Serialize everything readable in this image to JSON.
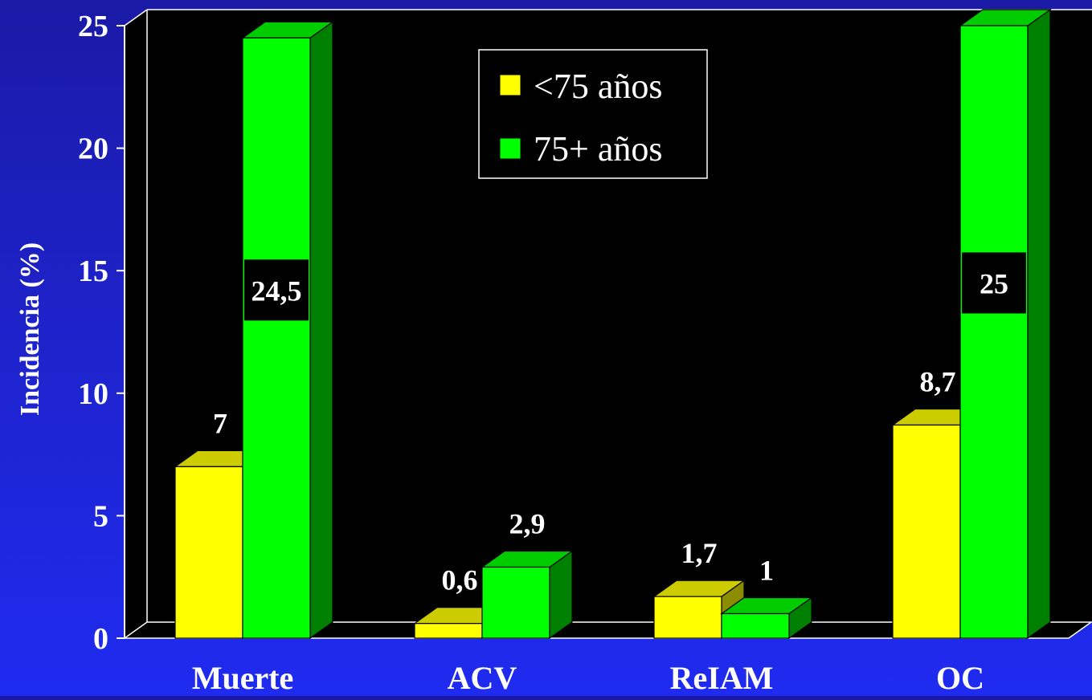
{
  "chart_data": {
    "type": "bar",
    "categories": [
      "Muerte",
      "ACV",
      "ReIAM",
      "OC"
    ],
    "series": [
      {
        "name": "<75 años",
        "values": [
          7,
          0.6,
          1.7,
          8.7
        ],
        "labels": [
          "7",
          "0,6",
          "1,7",
          "8,7"
        ]
      },
      {
        "name": "75+ años",
        "values": [
          24.5,
          2.9,
          1,
          25
        ],
        "labels": [
          "24,5",
          "2,9",
          "1",
          "25"
        ]
      }
    ],
    "ylabel": "Incidencia (%)",
    "ylim": [
      0,
      25
    ],
    "yticks": [
      0,
      5,
      10,
      15,
      20,
      25
    ],
    "legend_position": "top-center",
    "three_d": true,
    "colors": {
      "series": [
        "#ffff00",
        "#00ff00"
      ],
      "series_top": [
        "#cccc00",
        "#00cc00"
      ],
      "series_side": [
        "#8c8c00",
        "#008000"
      ],
      "plot_background": "#000000",
      "label_box": "#000000",
      "text": "#ffffff"
    }
  }
}
